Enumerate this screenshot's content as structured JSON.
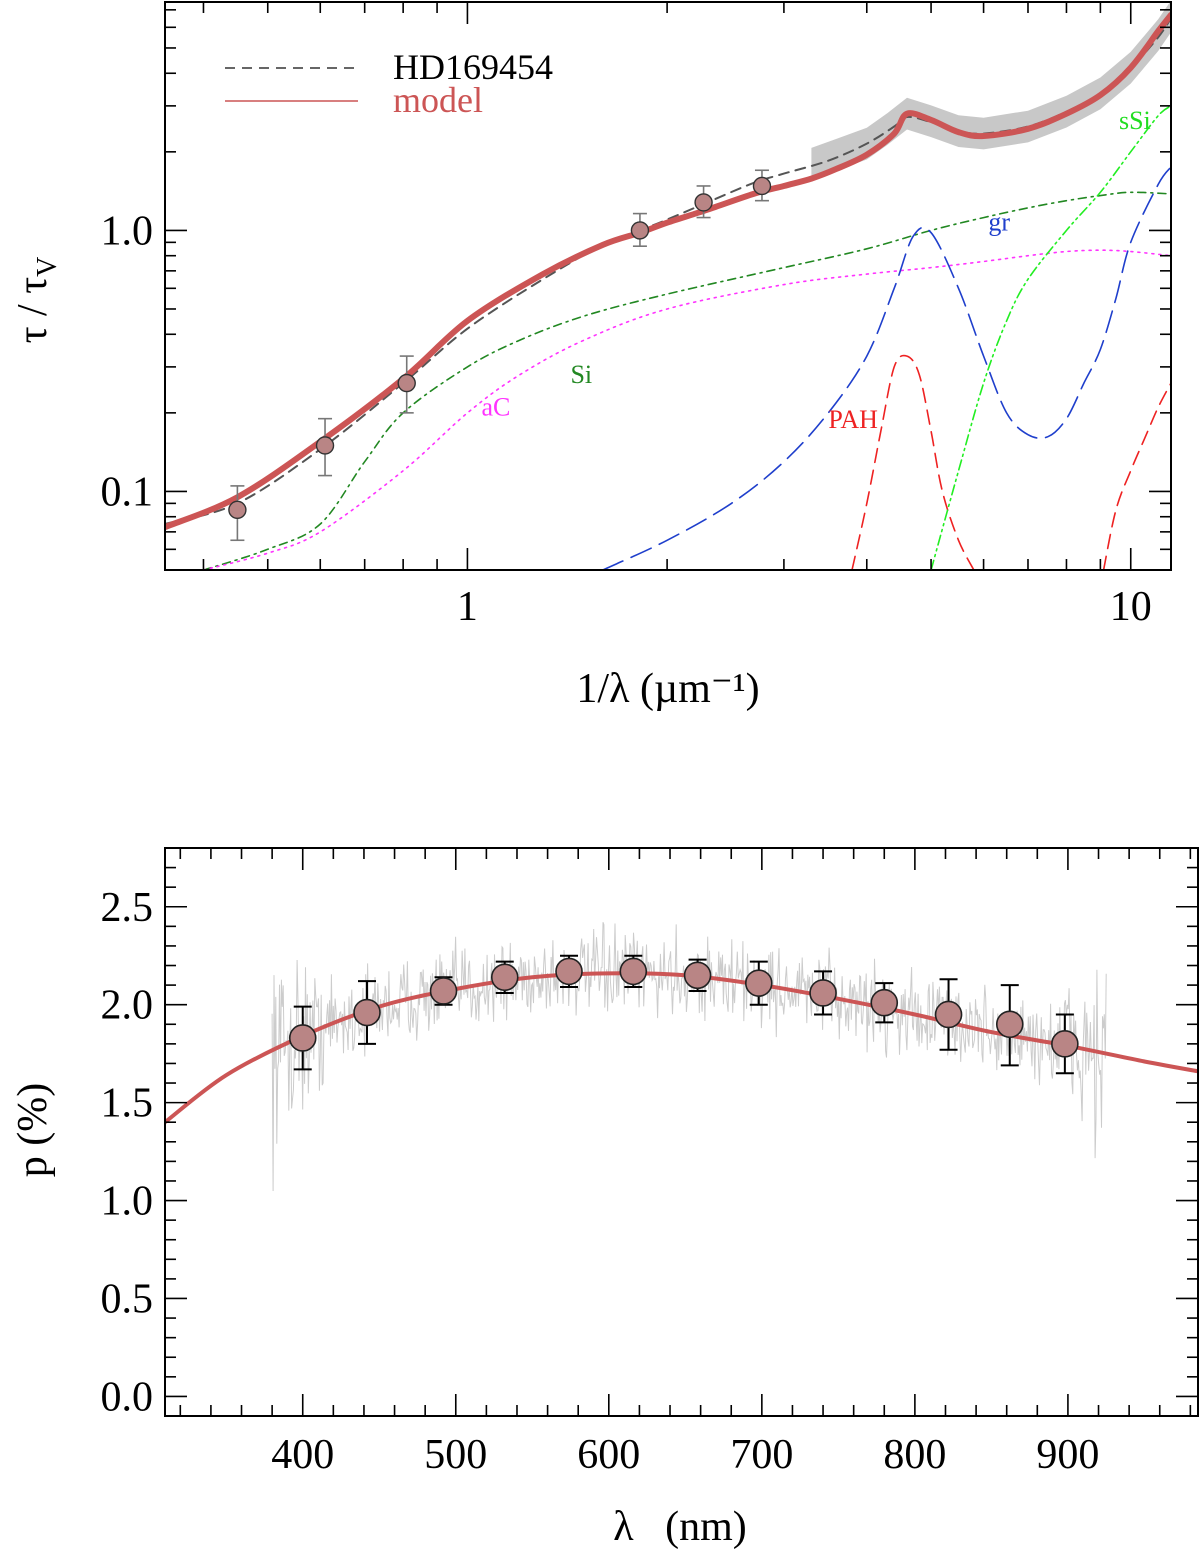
{
  "chart_data": [
    {
      "type": "line",
      "xscale": "log",
      "yscale": "log",
      "xlim": [
        0.35,
        11.5
      ],
      "ylim": [
        0.05,
        7.5
      ],
      "xlabel": "1/λ (µm⁻¹)",
      "ylabel_main": "τ / τ",
      "ylabel_sub": "V",
      "xticks": [
        {
          "v": 1,
          "label": "1"
        },
        {
          "v": 10,
          "label": "10"
        }
      ],
      "yticks": [
        {
          "v": 0.1,
          "label": "0.1"
        },
        {
          "v": 1.0,
          "label": "1.0"
        }
      ],
      "legend": {
        "position": "top-left",
        "entries": [
          {
            "label": "HD169454",
            "style": "dashed",
            "color": "#333333"
          },
          {
            "label": "model",
            "style": "solid",
            "color": "#cc5555"
          }
        ]
      },
      "series": [
        {
          "name": "observed (HD169454)",
          "color": "#555555",
          "dash": "10,7",
          "width": 2,
          "x": [
            0.35,
            0.45,
            0.6,
            0.8,
            1.0,
            1.3,
            1.6,
            1.82,
            2.0,
            2.3,
            2.7,
            3.0,
            3.5,
            4.0,
            4.4,
            4.6,
            5.0,
            5.5,
            6.0,
            7.0,
            8.0,
            9.0,
            10.0,
            11.0,
            11.5
          ],
          "y": [
            0.075,
            0.09,
            0.145,
            0.26,
            0.42,
            0.65,
            0.88,
            1.0,
            1.1,
            1.28,
            1.52,
            1.65,
            1.85,
            2.15,
            2.5,
            2.72,
            2.6,
            2.4,
            2.35,
            2.5,
            2.85,
            3.35,
            4.2,
            5.5,
            6.5
          ]
        },
        {
          "name": "model",
          "color": "#cc5555",
          "dash": "",
          "width": 6,
          "x": [
            0.35,
            0.45,
            0.6,
            0.8,
            1.0,
            1.3,
            1.6,
            1.82,
            2.0,
            2.3,
            2.7,
            3.0,
            3.3,
            3.6,
            4.0,
            4.4,
            4.6,
            5.0,
            5.5,
            6.0,
            7.0,
            8.0,
            9.0,
            10.0,
            11.0,
            11.5
          ],
          "y": [
            0.073,
            0.095,
            0.155,
            0.27,
            0.45,
            0.68,
            0.88,
            0.98,
            1.07,
            1.2,
            1.38,
            1.48,
            1.58,
            1.72,
            1.95,
            2.35,
            2.8,
            2.65,
            2.38,
            2.3,
            2.45,
            2.8,
            3.3,
            4.2,
            5.8,
            6.7
          ]
        },
        {
          "name": "Si",
          "color": "#228822",
          "dash": "8,5,2,5",
          "width": 1.6,
          "x": [
            0.4,
            0.5,
            0.6,
            0.7,
            0.8,
            1.0,
            1.2,
            1.5,
            2.0,
            3.0,
            4.0,
            5.0,
            6.0,
            7.0,
            8.0,
            9.0,
            10.0,
            11.5
          ],
          "y": [
            0.05,
            0.06,
            0.075,
            0.13,
            0.2,
            0.3,
            0.38,
            0.47,
            0.57,
            0.72,
            0.85,
            1.0,
            1.12,
            1.22,
            1.3,
            1.36,
            1.4,
            1.38
          ]
        },
        {
          "name": "aC",
          "color": "#ff33ff",
          "dash": "2,5",
          "width": 1.6,
          "x": [
            0.4,
            0.5,
            0.6,
            0.8,
            1.0,
            1.2,
            1.5,
            2.0,
            3.0,
            4.0,
            5.0,
            6.0,
            7.0,
            8.0,
            9.0,
            10.0,
            11.5
          ],
          "y": [
            0.05,
            0.058,
            0.07,
            0.12,
            0.2,
            0.28,
            0.38,
            0.5,
            0.62,
            0.68,
            0.72,
            0.76,
            0.8,
            0.83,
            0.84,
            0.83,
            0.8
          ]
        },
        {
          "name": "gr",
          "color": "#1f3fcc",
          "dash": "22,9",
          "width": 1.6,
          "x": [
            1.6,
            2.0,
            2.5,
            3.0,
            3.5,
            4.0,
            4.4,
            4.7,
            5.0,
            5.5,
            6.0,
            6.5,
            7.0,
            7.5,
            8.0,
            8.5,
            9.0,
            9.5,
            10.0,
            11.0,
            11.5
          ],
          "y": [
            0.05,
            0.065,
            0.09,
            0.13,
            0.2,
            0.33,
            0.6,
            0.95,
            0.98,
            0.6,
            0.33,
            0.2,
            0.165,
            0.162,
            0.19,
            0.26,
            0.35,
            0.55,
            0.9,
            1.5,
            1.75
          ]
        },
        {
          "name": "PAH",
          "color": "#ee2222",
          "dash": "14,8",
          "width": 1.6,
          "x": [
            3.8,
            4.0,
            4.2,
            4.4,
            4.6,
            4.8,
            5.0,
            5.2,
            5.5,
            5.8
          ],
          "y": [
            0.05,
            0.09,
            0.17,
            0.3,
            0.33,
            0.28,
            0.17,
            0.1,
            0.065,
            0.05
          ]
        },
        {
          "name": "sSi",
          "color": "#22ee22",
          "dash": "10,4,2,4,2,4",
          "width": 1.6,
          "x": [
            5.0,
            5.5,
            6.0,
            6.5,
            7.0,
            8.0,
            9.0,
            10.0,
            11.0,
            11.5
          ],
          "y": [
            0.05,
            0.12,
            0.26,
            0.45,
            0.65,
            1.0,
            1.4,
            2.0,
            2.75,
            3.0
          ]
        },
        {
          "name": "PAH (far-UV)",
          "color": "#ee2222",
          "dash": "14,8",
          "width": 1.6,
          "x": [
            9.1,
            9.5,
            10.0,
            10.5,
            11.0,
            11.5
          ],
          "y": [
            0.05,
            0.085,
            0.12,
            0.16,
            0.21,
            0.26
          ]
        }
      ],
      "uncertainty_band": {
        "name": "observed spectrum uncertainty",
        "x": [
          3.3,
          3.6,
          4.0,
          4.3,
          4.6,
          5.0,
          5.5,
          6.0,
          7.0,
          8.0,
          9.0,
          10.0,
          11.0,
          11.5
        ],
        "y": [
          1.8,
          1.95,
          2.15,
          2.45,
          2.8,
          2.62,
          2.4,
          2.35,
          2.5,
          2.85,
          3.35,
          4.2,
          5.6,
          6.6
        ],
        "half_width_factor": 1.15
      },
      "points": [
        {
          "x": 0.45,
          "y": 0.085,
          "lo": 0.065,
          "hi": 0.105
        },
        {
          "x": 0.61,
          "y": 0.15,
          "lo": 0.115,
          "hi": 0.19
        },
        {
          "x": 0.81,
          "y": 0.26,
          "lo": 0.2,
          "hi": 0.33
        },
        {
          "x": 1.82,
          "y": 1.0,
          "lo": 0.87,
          "hi": 1.16
        },
        {
          "x": 2.27,
          "y": 1.28,
          "lo": 1.12,
          "hi": 1.48
        },
        {
          "x": 2.78,
          "y": 1.48,
          "lo": 1.3,
          "hi": 1.7
        }
      ],
      "annotations": [
        {
          "text": "sSi",
          "x": 9.6,
          "y": 2.45,
          "color": "#22dd22"
        },
        {
          "text": "gr",
          "x": 6.1,
          "y": 1.0,
          "color": "#1f3fcc"
        },
        {
          "text": "Si",
          "x": 1.43,
          "y": 0.26,
          "color": "#228822"
        },
        {
          "text": "aC",
          "x": 1.05,
          "y": 0.195,
          "color": "#ff33ff"
        },
        {
          "text": "PAH",
          "x": 3.5,
          "y": 0.175,
          "color": "#ee2222"
        }
      ]
    },
    {
      "type": "line",
      "xscale": "linear",
      "yscale": "linear",
      "xlim": [
        310,
        985
      ],
      "ylim": [
        -0.1,
        2.8
      ],
      "xlabel": "λ   (nm)",
      "ylabel": "p (%)",
      "xticks": [
        {
          "v": 400,
          "label": "400"
        },
        {
          "v": 500,
          "label": "500"
        },
        {
          "v": 600,
          "label": "600"
        },
        {
          "v": 700,
          "label": "700"
        },
        {
          "v": 800,
          "label": "800"
        },
        {
          "v": 900,
          "label": "900"
        }
      ],
      "yticks": [
        {
          "v": 0.0,
          "label": "0.0"
        },
        {
          "v": 0.5,
          "label": "0.5"
        },
        {
          "v": 1.0,
          "label": "1.0"
        },
        {
          "v": 1.5,
          "label": "1.5"
        },
        {
          "v": 2.0,
          "label": "2.0"
        },
        {
          "v": 2.5,
          "label": "2.5"
        }
      ],
      "xminor_step": 20,
      "yminor_step": 0.1,
      "noisy_spectrum": {
        "name": "spectropolarimetry",
        "color": "#cccccc",
        "x_range": [
          380,
          925
        ],
        "samples": 900,
        "noise_edge": 0.55,
        "noise_mid": 0.22
      },
      "series": [
        {
          "name": "model fit",
          "color": "#cc5555",
          "width": 4,
          "x": [
            310,
            350,
            400,
            450,
            500,
            550,
            600,
            650,
            700,
            750,
            800,
            850,
            900,
            950,
            985
          ],
          "y": [
            1.4,
            1.64,
            1.84,
            1.99,
            2.08,
            2.14,
            2.16,
            2.15,
            2.1,
            2.03,
            1.95,
            1.86,
            1.79,
            1.71,
            1.66
          ]
        }
      ],
      "points": [
        {
          "x": 400,
          "y": 1.83,
          "lo": 1.67,
          "hi": 1.99
        },
        {
          "x": 442,
          "y": 1.96,
          "lo": 1.8,
          "hi": 2.12
        },
        {
          "x": 492,
          "y": 2.07,
          "lo": 2.0,
          "hi": 2.14
        },
        {
          "x": 532,
          "y": 2.14,
          "lo": 2.06,
          "hi": 2.22
        },
        {
          "x": 574,
          "y": 2.17,
          "lo": 2.09,
          "hi": 2.25
        },
        {
          "x": 616,
          "y": 2.17,
          "lo": 2.09,
          "hi": 2.25
        },
        {
          "x": 658,
          "y": 2.15,
          "lo": 2.07,
          "hi": 2.23
        },
        {
          "x": 698,
          "y": 2.11,
          "lo": 2.0,
          "hi": 2.22
        },
        {
          "x": 740,
          "y": 2.06,
          "lo": 1.95,
          "hi": 2.17
        },
        {
          "x": 780,
          "y": 2.01,
          "lo": 1.91,
          "hi": 2.11
        },
        {
          "x": 822,
          "y": 1.95,
          "lo": 1.77,
          "hi": 2.13
        },
        {
          "x": 862,
          "y": 1.9,
          "lo": 1.69,
          "hi": 2.1
        },
        {
          "x": 898,
          "y": 1.8,
          "lo": 1.65,
          "hi": 1.95
        }
      ]
    }
  ]
}
